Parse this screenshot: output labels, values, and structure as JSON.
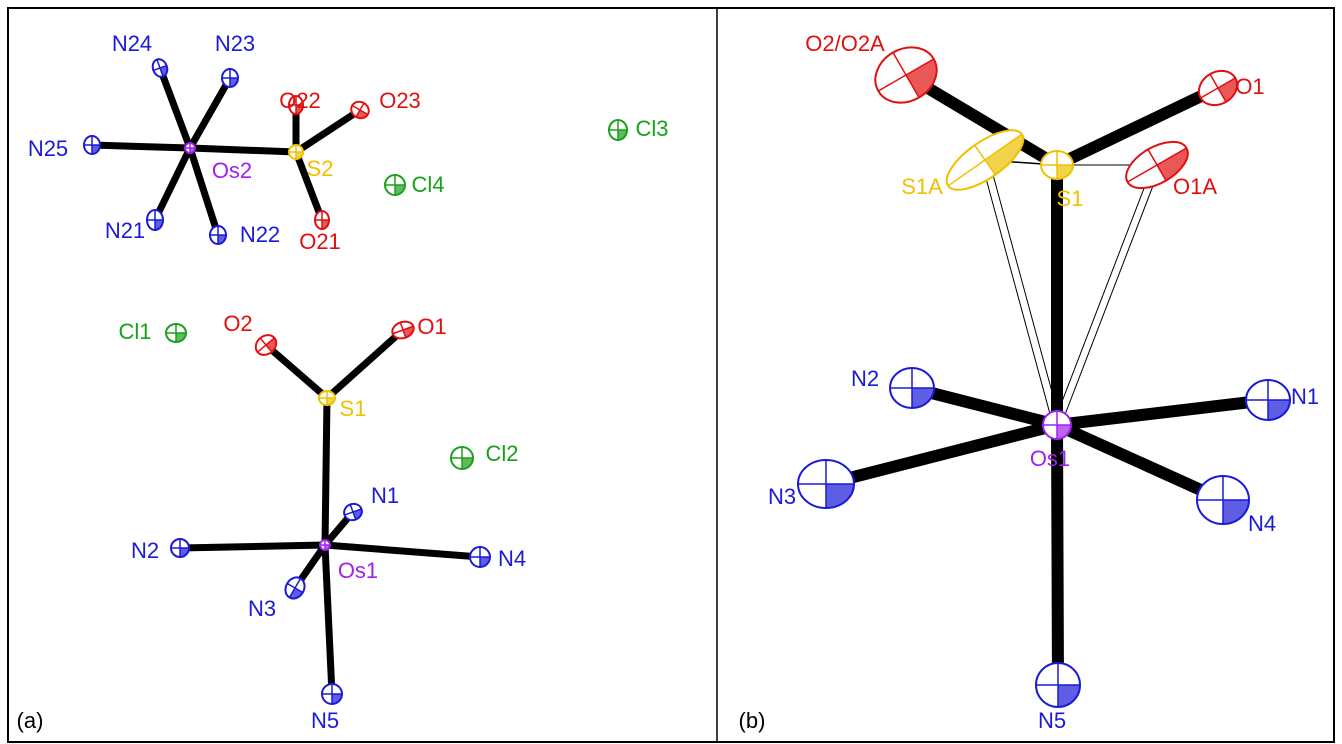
{
  "panels": [
    {
      "label": "(a)",
      "atoms": [
        "N24",
        "N23",
        "N25",
        "Os2",
        "S2",
        "O22",
        "O23",
        "O21",
        "N21",
        "N22",
        "Cl3",
        "Cl4",
        "Cl1",
        "O2",
        "O1",
        "S1",
        "Cl2",
        "N1",
        "N2",
        "Os1",
        "N4",
        "N3",
        "N5"
      ]
    },
    {
      "label": "(b)",
      "atoms": [
        "O2/O2A",
        "O1",
        "S1A",
        "S1",
        "O1A",
        "Os1",
        "N2",
        "N1",
        "N3",
        "N4",
        "N5"
      ]
    }
  ]
}
